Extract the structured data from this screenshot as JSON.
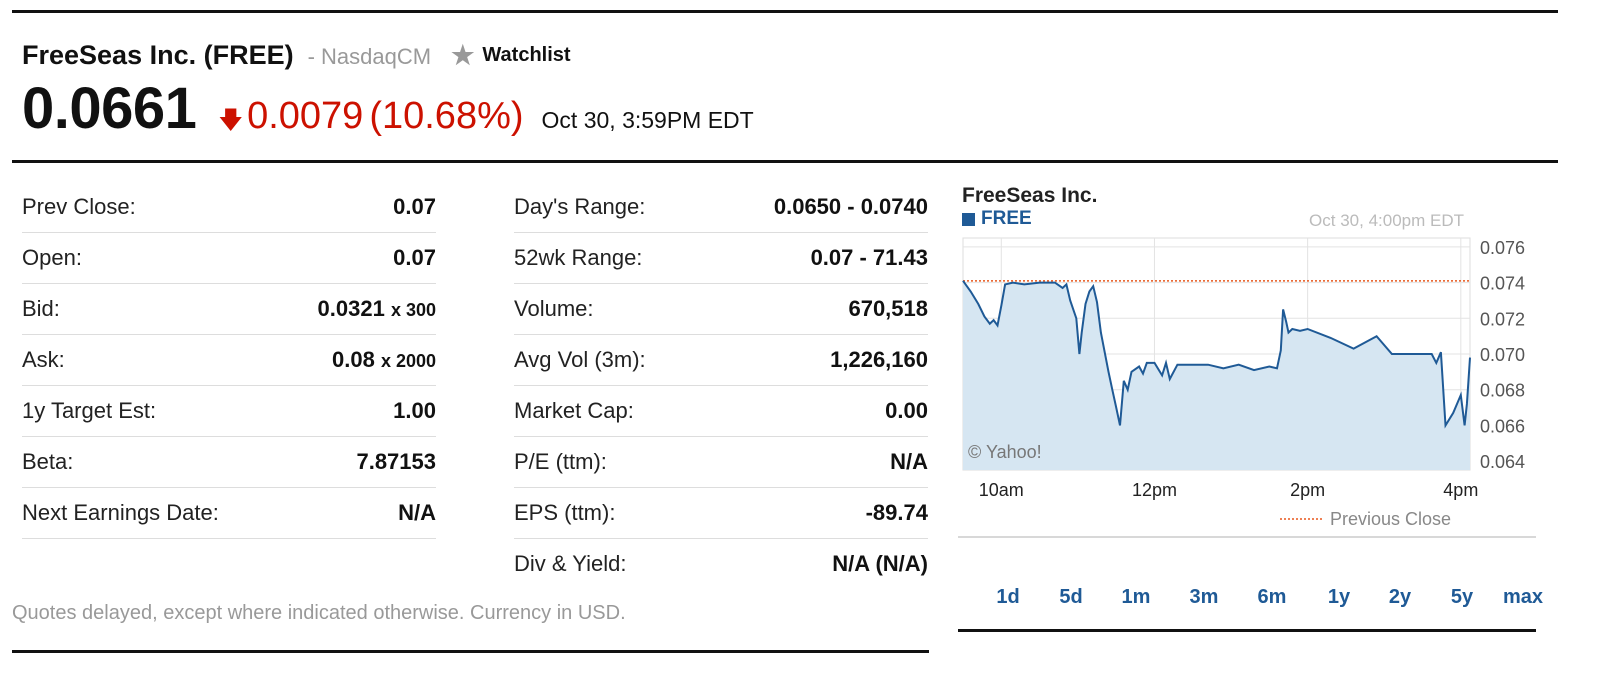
{
  "quote": {
    "company": "FreeSeas Inc. (FREE)",
    "exchange": "- NasdaqCM",
    "watchlist_label": "Watchlist",
    "price": "0.0661",
    "change": "0.0079",
    "change_pct": "(10.68%)",
    "timestamp": "Oct 30, 3:59PM EDT",
    "direction_icon": "arrow-down-icon"
  },
  "left_table": [
    {
      "label": "Prev Close:",
      "value": "0.07",
      "suffix": ""
    },
    {
      "label": "Open:",
      "value": "0.07",
      "suffix": ""
    },
    {
      "label": "Bid:",
      "value": "0.0321",
      "suffix": "x 300"
    },
    {
      "label": "Ask:",
      "value": "0.08",
      "suffix": "x 2000"
    },
    {
      "label": "1y Target Est:",
      "value": "1.00",
      "suffix": ""
    },
    {
      "label": "Beta:",
      "value": "7.87153",
      "suffix": ""
    },
    {
      "label": "Next Earnings Date:",
      "value": "N/A",
      "suffix": ""
    }
  ],
  "right_table": [
    {
      "label": "Day's Range:",
      "value": "0.0650 - 0.0740"
    },
    {
      "label": "52wk Range:",
      "value": "0.07 - 71.43"
    },
    {
      "label": "Volume:",
      "value": "670,518"
    },
    {
      "label": "Avg Vol (3m):",
      "value": "1,226,160"
    },
    {
      "label": "Market Cap:",
      "value": "0.00"
    },
    {
      "label": "P/E (ttm):",
      "value": "N/A"
    },
    {
      "label": "EPS (ttm):",
      "value": "-89.74"
    },
    {
      "label": "Div & Yield:",
      "value": "N/A (N/A)"
    }
  ],
  "footnote": "Quotes delayed, except where indicated otherwise. Currency in USD.",
  "chart_header": {
    "title": "FreeSeas Inc.",
    "symbol": "FREE",
    "timestamp": "Oct 30, 4:00pm EDT",
    "copyright": "© Yahoo!",
    "legend_label": "Previous Close"
  },
  "range_tabs": [
    "1d",
    "5d",
    "1m",
    "3m",
    "6m",
    "1y",
    "2y",
    "5y",
    "max"
  ],
  "colors": {
    "accent": "#1f5a96",
    "negative": "#cc1100",
    "area": "#d6e6f2",
    "prev_close": "#e8571c"
  },
  "chart_data": {
    "type": "area",
    "title": "FreeSeas Inc.",
    "series": [
      {
        "name": "FREE",
        "points": [
          [
            9.5,
            0.0741
          ],
          [
            9.6,
            0.0735
          ],
          [
            9.7,
            0.0728
          ],
          [
            9.78,
            0.0721
          ],
          [
            9.85,
            0.0717
          ],
          [
            9.9,
            0.0719
          ],
          [
            9.95,
            0.0716
          ],
          [
            10.0,
            0.0727
          ],
          [
            10.05,
            0.0739
          ],
          [
            10.15,
            0.074
          ],
          [
            10.3,
            0.0739
          ],
          [
            10.5,
            0.074
          ],
          [
            10.7,
            0.074
          ],
          [
            10.8,
            0.0737
          ],
          [
            10.85,
            0.0739
          ],
          [
            10.9,
            0.073
          ],
          [
            10.98,
            0.072
          ],
          [
            11.02,
            0.07
          ],
          [
            11.05,
            0.0712
          ],
          [
            11.1,
            0.0728
          ],
          [
            11.15,
            0.0735
          ],
          [
            11.2,
            0.0738
          ],
          [
            11.25,
            0.0729
          ],
          [
            11.3,
            0.0712
          ],
          [
            11.4,
            0.069
          ],
          [
            11.45,
            0.068
          ],
          [
            11.5,
            0.067
          ],
          [
            11.55,
            0.066
          ],
          [
            11.6,
            0.0685
          ],
          [
            11.65,
            0.068
          ],
          [
            11.7,
            0.069
          ],
          [
            11.8,
            0.0693
          ],
          [
            11.85,
            0.0689
          ],
          [
            11.9,
            0.0695
          ],
          [
            12.0,
            0.0695
          ],
          [
            12.1,
            0.0688
          ],
          [
            12.15,
            0.0695
          ],
          [
            12.2,
            0.0686
          ],
          [
            12.3,
            0.0694
          ],
          [
            12.5,
            0.0694
          ],
          [
            12.7,
            0.0694
          ],
          [
            12.9,
            0.0692
          ],
          [
            13.1,
            0.0694
          ],
          [
            13.3,
            0.0691
          ],
          [
            13.5,
            0.0693
          ],
          [
            13.6,
            0.0692
          ],
          [
            13.65,
            0.0702
          ],
          [
            13.68,
            0.0725
          ],
          [
            13.72,
            0.0718
          ],
          [
            13.75,
            0.0712
          ],
          [
            13.8,
            0.0714
          ],
          [
            13.9,
            0.0713
          ],
          [
            14.0,
            0.0714
          ],
          [
            14.3,
            0.0709
          ],
          [
            14.6,
            0.0703
          ],
          [
            14.9,
            0.071
          ],
          [
            15.1,
            0.07
          ],
          [
            15.3,
            0.07
          ],
          [
            15.5,
            0.07
          ],
          [
            15.62,
            0.07
          ],
          [
            15.68,
            0.0695
          ],
          [
            15.74,
            0.0701
          ],
          [
            15.8,
            0.066
          ],
          [
            15.9,
            0.0667
          ],
          [
            16.0,
            0.0677
          ],
          [
            16.05,
            0.066
          ],
          [
            16.08,
            0.0672
          ],
          [
            16.12,
            0.0698
          ]
        ]
      }
    ],
    "previous_close": 0.0741,
    "x_ticks": [
      "10am",
      "12pm",
      "2pm",
      "4pm"
    ],
    "y_ticks": [
      "0.076",
      "0.074",
      "0.072",
      "0.070",
      "0.068",
      "0.066",
      "0.064"
    ],
    "ylim": [
      0.0635,
      0.0765
    ],
    "xlim": [
      9.5,
      16.12
    ],
    "grid": true,
    "legend": "bottom-right"
  }
}
